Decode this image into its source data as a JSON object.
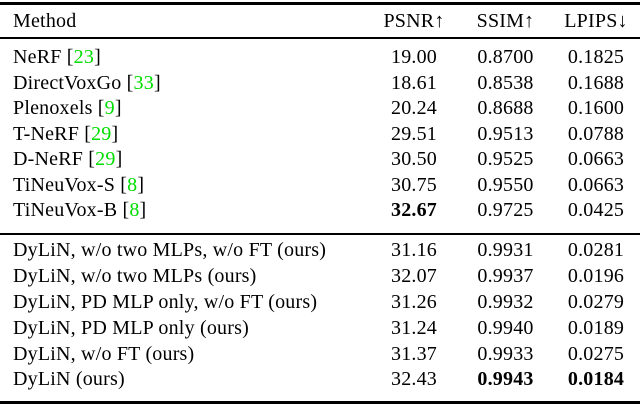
{
  "page": {
    "background": "#ffffff"
  },
  "colors": {
    "text": "#000000",
    "rule": "#000000",
    "citation_green": "#00dd00"
  },
  "table": {
    "columns": [
      {
        "key": "method",
        "label": "Method"
      },
      {
        "key": "psnr",
        "label": "PSNR↑"
      },
      {
        "key": "ssim",
        "label": "SSIM↑"
      },
      {
        "key": "lpips",
        "label": "LPIPS↓"
      }
    ],
    "sections": [
      {
        "name": "baselines",
        "rows": [
          {
            "method": "NeRF",
            "cite": "23",
            "psnr": "19.00",
            "ssim": "0.8700",
            "lpips": "0.1825",
            "bold": []
          },
          {
            "method": "DirectVoxGo",
            "cite": "33",
            "psnr": "18.61",
            "ssim": "0.8538",
            "lpips": "0.1688",
            "bold": []
          },
          {
            "method": "Plenoxels",
            "cite": "9",
            "psnr": "20.24",
            "ssim": "0.8688",
            "lpips": "0.1600",
            "bold": []
          },
          {
            "method": "T-NeRF",
            "cite": "29",
            "psnr": "29.51",
            "ssim": "0.9513",
            "lpips": "0.0788",
            "bold": []
          },
          {
            "method": "D-NeRF",
            "cite": "29",
            "psnr": "30.50",
            "ssim": "0.9525",
            "lpips": "0.0663",
            "bold": []
          },
          {
            "method": "TiNeuVox-S",
            "cite": "8",
            "psnr": "30.75",
            "ssim": "0.9550",
            "lpips": "0.0663",
            "bold": []
          },
          {
            "method": "TiNeuVox-B",
            "cite": "8",
            "psnr": "32.67",
            "ssim": "0.9725",
            "lpips": "0.0425",
            "bold": [
              "psnr"
            ]
          }
        ]
      },
      {
        "name": "ours-ablations",
        "rows": [
          {
            "method": "DyLiN, w/o two MLPs, w/o FT (ours)",
            "cite": null,
            "psnr": "31.16",
            "ssim": "0.9931",
            "lpips": "0.0281",
            "bold": []
          },
          {
            "method": "DyLiN, w/o two MLPs (ours)",
            "cite": null,
            "psnr": "32.07",
            "ssim": "0.9937",
            "lpips": "0.0196",
            "bold": []
          },
          {
            "method": "DyLiN, PD MLP only, w/o FT (ours)",
            "cite": null,
            "psnr": "31.26",
            "ssim": "0.9932",
            "lpips": "0.0279",
            "bold": []
          },
          {
            "method": "DyLiN, PD MLP only (ours)",
            "cite": null,
            "psnr": "31.24",
            "ssim": "0.9940",
            "lpips": "0.0189",
            "bold": []
          },
          {
            "method": "DyLiN, w/o FT (ours)",
            "cite": null,
            "psnr": "31.37",
            "ssim": "0.9933",
            "lpips": "0.0275",
            "bold": []
          },
          {
            "method": "DyLiN (ours)",
            "cite": null,
            "psnr": "32.43",
            "ssim": "0.9943",
            "lpips": "0.0184",
            "bold": [
              "ssim",
              "lpips"
            ]
          }
        ]
      }
    ]
  }
}
